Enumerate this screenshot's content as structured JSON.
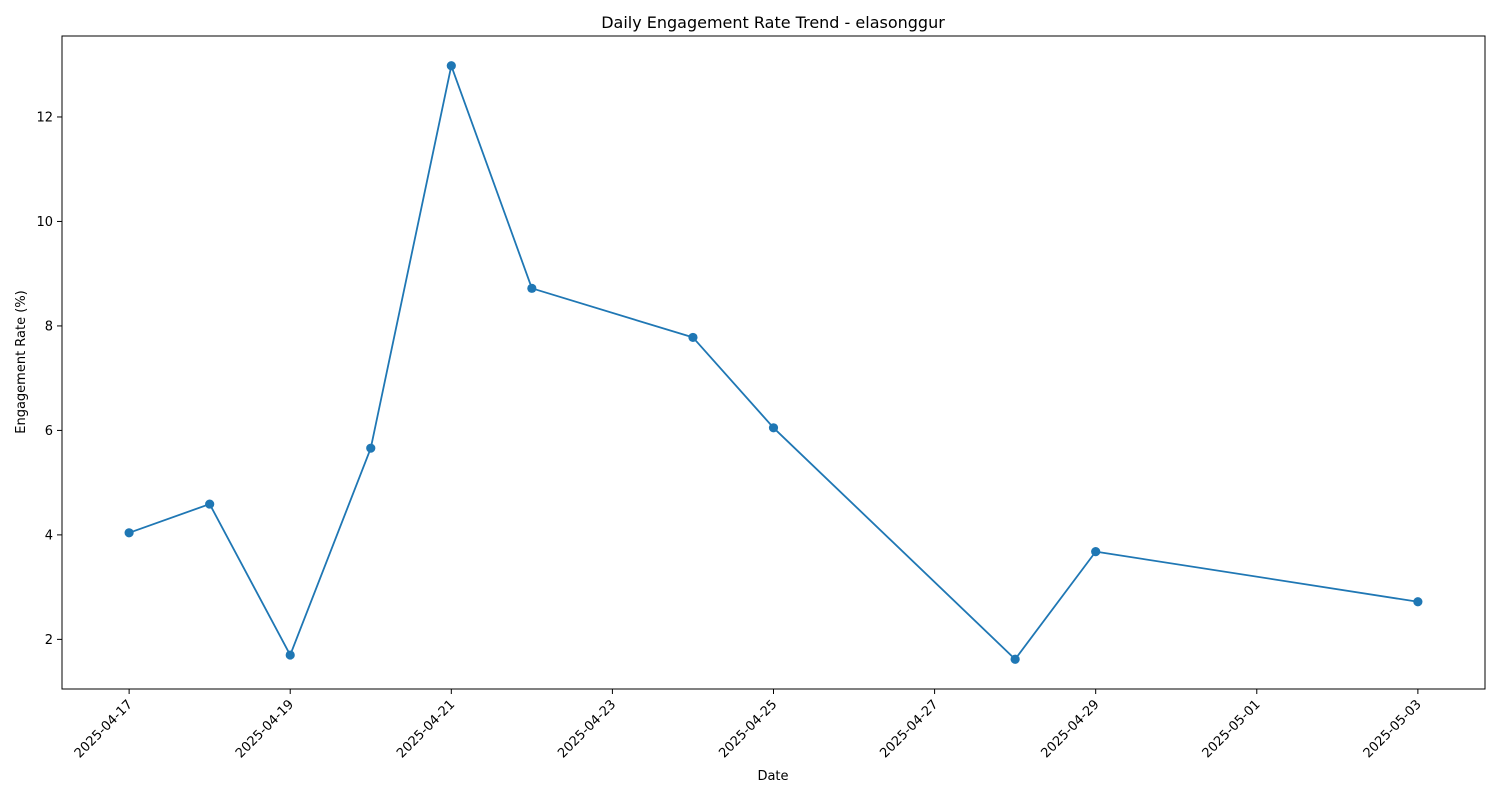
{
  "chart_data": {
    "type": "line",
    "title": "Daily Engagement Rate Trend - elasonggur",
    "xlabel": "Date",
    "ylabel": "Engagement Rate (%)",
    "x_ticks": [
      "2025-04-17",
      "2025-04-19",
      "2025-04-21",
      "2025-04-23",
      "2025-04-25",
      "2025-04-27",
      "2025-04-29",
      "2025-05-01",
      "2025-05-03"
    ],
    "y_ticks": [
      2,
      4,
      6,
      8,
      10,
      12
    ],
    "xlim": [
      "2025-04-16 04:00",
      "2025-05-03 20:00"
    ],
    "ylim": [
      1.05,
      13.55
    ],
    "grid": false,
    "series": [
      {
        "color": "#1f77b4",
        "marker": "circle",
        "points": [
          {
            "x": "2025-04-17",
            "y": 4.04
          },
          {
            "x": "2025-04-18",
            "y": 4.59
          },
          {
            "x": "2025-04-19",
            "y": 1.7
          },
          {
            "x": "2025-04-20",
            "y": 5.66
          },
          {
            "x": "2025-04-21",
            "y": 12.98
          },
          {
            "x": "2025-04-22",
            "y": 8.72
          },
          {
            "x": "2025-04-24",
            "y": 7.78
          },
          {
            "x": "2025-04-25",
            "y": 6.05
          },
          {
            "x": "2025-04-28",
            "y": 1.62
          },
          {
            "x": "2025-04-29",
            "y": 3.68
          },
          {
            "x": "2025-05-03",
            "y": 2.72
          }
        ]
      }
    ]
  }
}
